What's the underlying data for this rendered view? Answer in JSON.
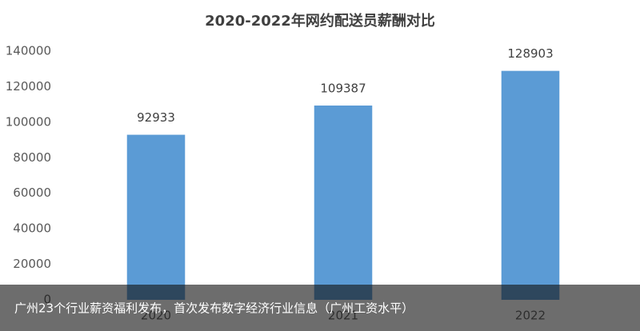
{
  "chart_data": {
    "type": "bar",
    "title": "2020-2022年网约配送员薪酬对比",
    "categories": [
      "2020",
      "2021",
      "2022"
    ],
    "values": [
      92933,
      109387,
      128903
    ],
    "color": "#5b9bd5",
    "ylim": [
      0,
      140000
    ],
    "yticks": [
      0,
      20000,
      40000,
      60000,
      80000,
      100000,
      120000,
      140000
    ],
    "grid": false
  },
  "caption": "广州23个行业薪资福利发布，首次发布数字经济行业信息（广州工资水平）"
}
